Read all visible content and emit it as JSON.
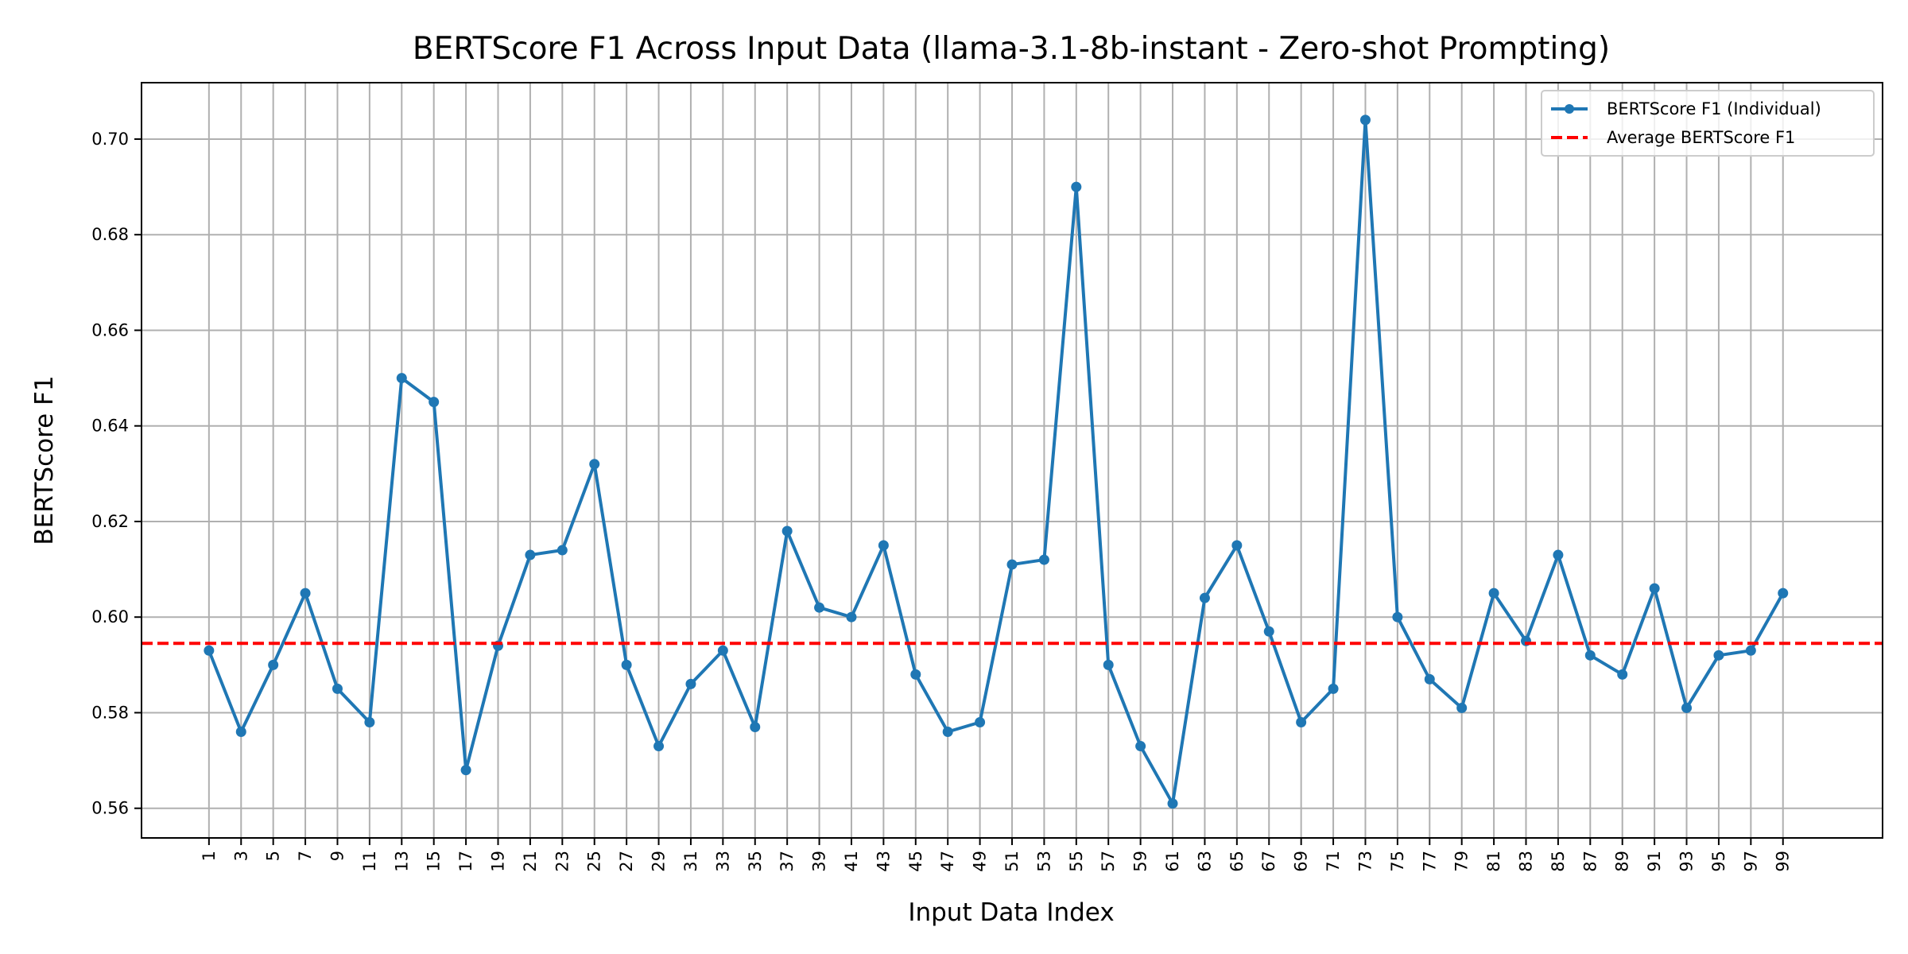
{
  "chart_data": {
    "type": "line",
    "title": "BERTScore F1 Across Input Data (llama-3.1-8b-instant - Zero-shot Prompting)",
    "xlabel": "Input Data Index",
    "ylabel": "BERTScore F1",
    "xlim": [
      -3.2,
      105.2
    ],
    "ylim": [
      0.5538,
      0.7118
    ],
    "x_ticks": [
      1,
      3,
      5,
      7,
      9,
      11,
      13,
      15,
      17,
      19,
      21,
      23,
      25,
      27,
      29,
      31,
      33,
      35,
      37,
      39,
      41,
      43,
      45,
      47,
      49,
      51,
      53,
      55,
      57,
      59,
      61,
      63,
      65,
      67,
      69,
      71,
      73,
      75,
      77,
      79,
      81,
      83,
      85,
      87,
      89,
      91,
      93,
      95,
      97,
      99
    ],
    "y_ticks": [
      0.56,
      0.58,
      0.6,
      0.62,
      0.64,
      0.66,
      0.68,
      0.7
    ],
    "y_tick_labels": [
      "0.56",
      "0.58",
      "0.60",
      "0.62",
      "0.64",
      "0.66",
      "0.68",
      "0.70"
    ],
    "grid": true,
    "legend_position": "top-right",
    "series": [
      {
        "name": "BERTScore F1 (Individual)",
        "color": "#1f77b4",
        "marker": "circle",
        "x": [
          1,
          3,
          5,
          7,
          9,
          11,
          13,
          15,
          17,
          19,
          21,
          23,
          25,
          27,
          29,
          31,
          33,
          35,
          37,
          39,
          41,
          43,
          45,
          47,
          49,
          51,
          53,
          55,
          57,
          59,
          61,
          63,
          65,
          67,
          69,
          71,
          73,
          75,
          77,
          79,
          81,
          83,
          85,
          87,
          89,
          91,
          93,
          95,
          97,
          99
        ],
        "values": [
          0.593,
          0.576,
          0.59,
          0.605,
          0.585,
          0.578,
          0.65,
          0.645,
          0.568,
          0.594,
          0.613,
          0.614,
          0.632,
          0.59,
          0.573,
          0.586,
          0.593,
          0.577,
          0.618,
          0.602,
          0.6,
          0.615,
          0.588,
          0.576,
          0.578,
          0.611,
          0.612,
          0.69,
          0.59,
          0.573,
          0.561,
          0.604,
          0.615,
          0.597,
          0.578,
          0.585,
          0.704,
          0.6,
          0.587,
          0.581,
          0.605,
          0.595,
          0.613,
          0.592,
          0.588,
          0.606,
          0.581,
          0.592,
          0.593,
          0.605
        ]
      },
      {
        "name": "Average BERTScore F1",
        "color": "#ff0000",
        "style": "dashed",
        "value": 0.5945
      }
    ]
  }
}
